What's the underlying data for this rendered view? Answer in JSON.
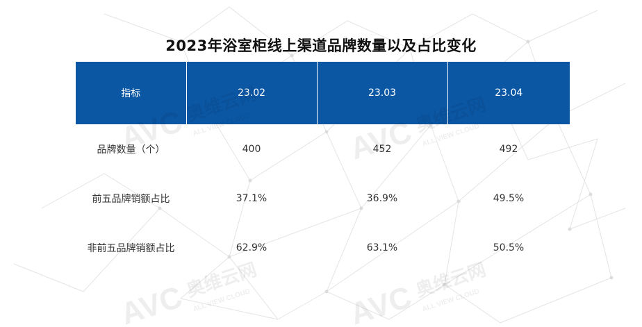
{
  "title": "2023年浴室柜线上渠道品牌数量以及占比变化",
  "watermark": {
    "brand": "奥维云网",
    "logo": "AVC",
    "tagline": "ALL VIEW CLOUD"
  },
  "colors": {
    "header_bg": "#0b57a4",
    "header_text": "#ffffff",
    "body_text": "#333333"
  },
  "chart_data": {
    "type": "table",
    "title": "2023年浴室柜线上渠道品牌数量以及占比变化",
    "columns": [
      "指标",
      "23.02",
      "23.03",
      "23.04"
    ],
    "rows": [
      {
        "label": "品牌数量（个）",
        "values": [
          "400",
          "452",
          "492"
        ]
      },
      {
        "label": "前五品牌销额占比",
        "values": [
          "37.1%",
          "36.9%",
          "49.5%"
        ]
      },
      {
        "label": "非前五品牌销额占比",
        "values": [
          "62.9%",
          "63.1%",
          "50.5%"
        ]
      }
    ]
  }
}
